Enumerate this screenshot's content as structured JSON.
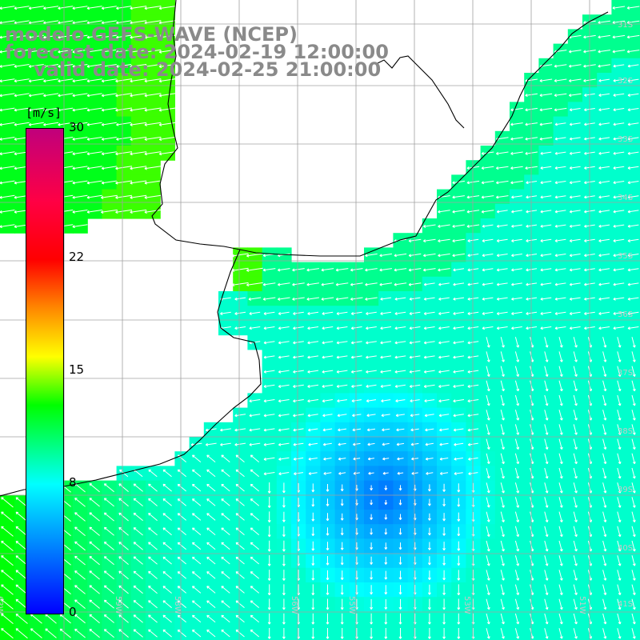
{
  "header": {
    "line1": "modelo GEFS-WAVE (NCEP)",
    "line2": "forecast date: 2024-02-19 12:00:00",
    "line3": "valid date: 2024-02-25 21:00:00"
  },
  "colorbar": {
    "unit": "[m/s]",
    "min": 0,
    "max": 30,
    "ticks": [
      "0",
      "8",
      "15",
      "22",
      "30"
    ],
    "tick_values": [
      0,
      8,
      15,
      22,
      30
    ],
    "colors": [
      "#0000ff",
      "#00b4ff",
      "#00ffff",
      "#00ff00",
      "#ffff00",
      "#ff8800",
      "#ff0000",
      "#c0007c"
    ]
  },
  "map": {
    "land_color": "#ffffff",
    "coastline_color": "#000000",
    "grid_color": "#a0a0a0",
    "arrow_color": "#ffffff",
    "lon_labels": [
      "63W",
      "59W",
      "58W",
      "56W",
      "55W",
      "53W",
      "51W"
    ],
    "lat_labels": [
      "31S",
      "32S",
      "33S",
      "34S",
      "35S",
      "36S",
      "37S",
      "38S",
      "39S",
      "40S",
      "41S"
    ],
    "low_wind_center": "#0018e8"
  }
}
